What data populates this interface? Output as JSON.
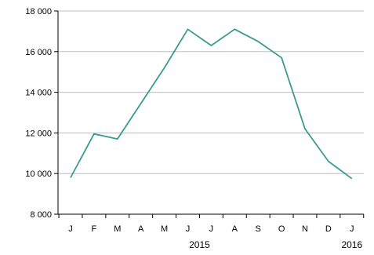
{
  "chart_data": {
    "type": "line",
    "title": "",
    "xlabel": "",
    "ylabel": "",
    "categories": [
      "J",
      "F",
      "M",
      "A",
      "M",
      "J",
      "J",
      "A",
      "S",
      "O",
      "N",
      "D",
      "J"
    ],
    "period_labels": [
      {
        "label": "2015",
        "category_index": 5.5
      },
      {
        "label": "2016",
        "category_index": 12
      }
    ],
    "series": [
      {
        "values": [
          9800,
          11950,
          11700,
          13450,
          15200,
          17100,
          16300,
          17100,
          16500,
          15700,
          12200,
          10600,
          9750
        ],
        "color": "#3a9a8f"
      }
    ],
    "ylim": [
      8000,
      18000
    ],
    "yticks": [
      8000,
      10000,
      12000,
      14000,
      16000,
      18000
    ],
    "ytick_labels": [
      "8 000",
      "10 000",
      "12 000",
      "14 000",
      "16 000",
      "18 000"
    ],
    "grid": {
      "y": true,
      "x": false
    },
    "gridline_color": "#bdbdbd",
    "axis_color": "#000000"
  }
}
